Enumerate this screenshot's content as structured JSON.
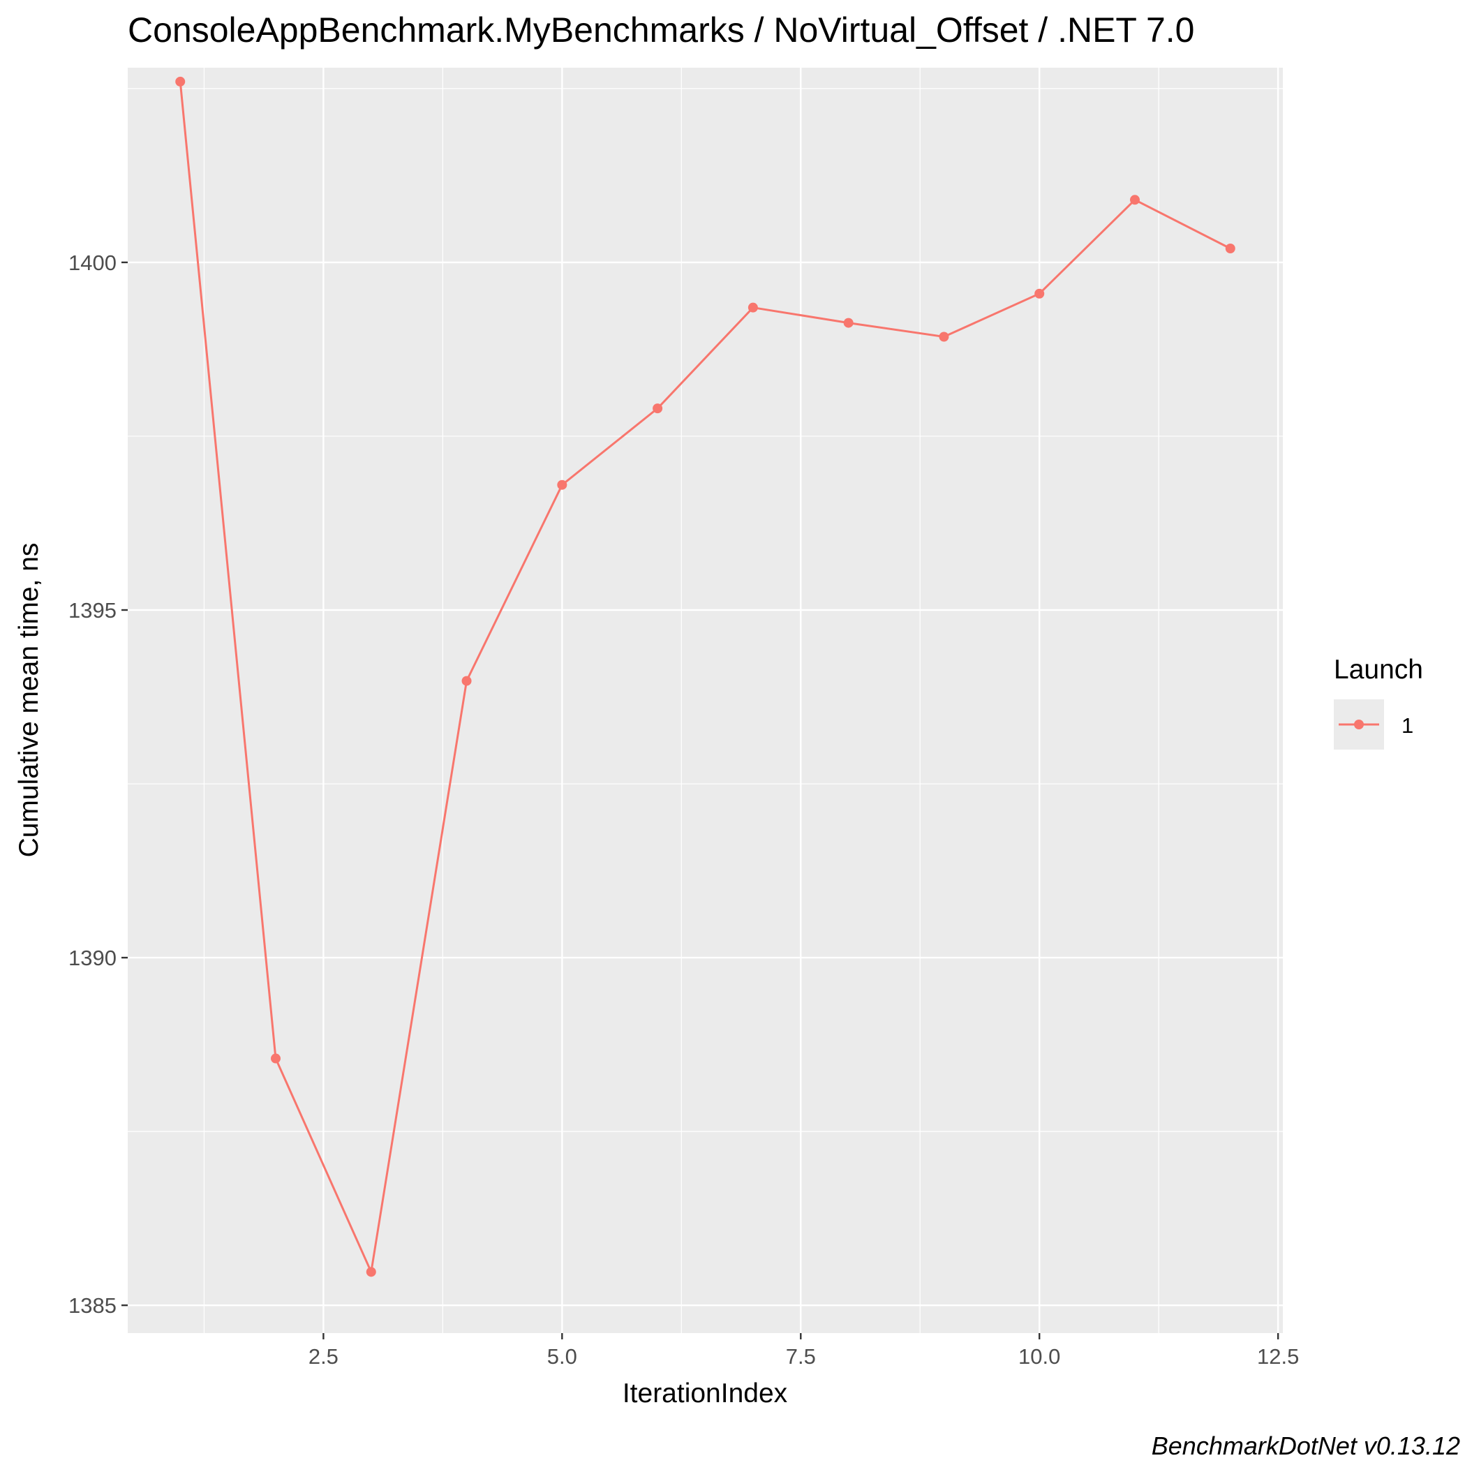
{
  "chart_data": {
    "type": "line",
    "title": "ConsoleAppBenchmark.MyBenchmarks / NoVirtual_Offset / .NET 7.0",
    "xlabel": "IterationIndex",
    "ylabel": "Cumulative mean time, ns",
    "caption": "BenchmarkDotNet v0.13.12",
    "xlim": [
      0.45,
      12.55
    ],
    "ylim": [
      1384.6,
      1402.8
    ],
    "x_ticks": [
      2.5,
      5.0,
      7.5,
      10.0,
      12.5
    ],
    "x_tick_labels": [
      "2.5",
      "5.0",
      "7.5",
      "10.0",
      "12.5"
    ],
    "y_ticks": [
      1385,
      1390,
      1395,
      1400
    ],
    "y_tick_labels": [
      "1385",
      "1390",
      "1395",
      "1400"
    ],
    "grid": true,
    "legend": {
      "title": "Launch",
      "position": "right"
    },
    "series": [
      {
        "name": "1",
        "color": "#F8766D",
        "x": [
          1,
          2,
          3,
          4,
          5,
          6,
          7,
          8,
          9,
          10,
          11,
          12
        ],
        "y": [
          1402.6,
          1388.55,
          1385.48,
          1393.98,
          1396.8,
          1397.9,
          1399.35,
          1399.13,
          1398.93,
          1399.55,
          1400.9,
          1400.2
        ]
      }
    ]
  }
}
